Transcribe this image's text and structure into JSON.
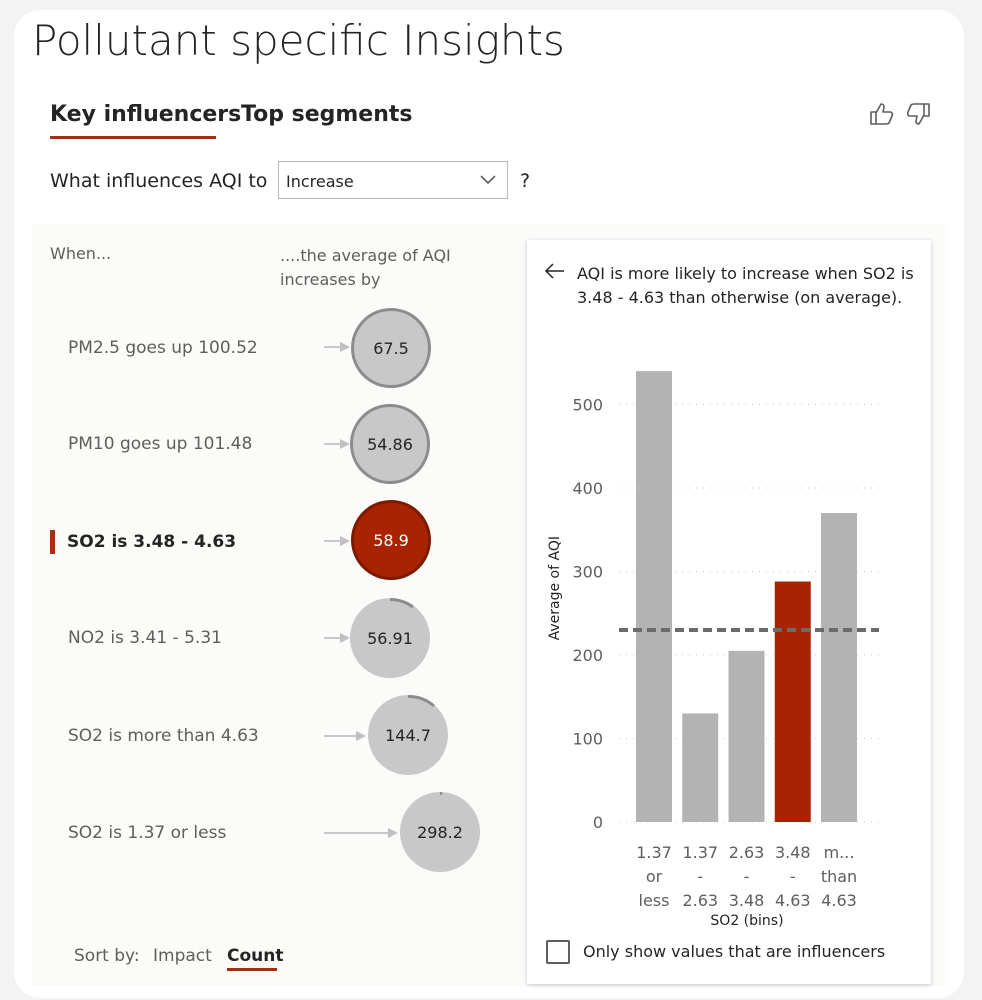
{
  "page": {
    "title": "Pollutant specific Insights"
  },
  "tabs": [
    {
      "label": "Key influencers",
      "active": true
    },
    {
      "label": "Top segments",
      "active": false
    }
  ],
  "feedback": {
    "like_icon": "thumbs-up-icon",
    "dislike_icon": "thumbs-down-icon"
  },
  "question": {
    "prefix": "What influences AQI to",
    "selected": "Increase",
    "suffix": "?"
  },
  "columns": {
    "when": "When...",
    "avg": "....the average of AQI increases by"
  },
  "influencers": [
    {
      "label": "PM2.5 goes up 100.52",
      "value": "67.5",
      "selected": false,
      "count_fraction": 1.0
    },
    {
      "label": "PM10 goes up 101.48",
      "value": "54.86",
      "selected": false,
      "count_fraction": 1.0
    },
    {
      "label": "SO2 is 3.48 - 4.63",
      "value": "58.9",
      "selected": true,
      "count_fraction": 0.1
    },
    {
      "label": "NO2 is 3.41 - 5.31",
      "value": "56.91",
      "selected": false,
      "count_fraction": 0.08
    },
    {
      "label": "SO2 is more than 4.63",
      "value": "144.7",
      "selected": false,
      "count_fraction": 0.1
    },
    {
      "label": "SO2 is 1.37 or less",
      "value": "298.2",
      "selected": false,
      "count_fraction": 0.005
    }
  ],
  "sort": {
    "label": "Sort by:",
    "impact": "Impact",
    "count": "Count",
    "active": "Count"
  },
  "detail": {
    "back_icon": "back-arrow-icon",
    "text": "AQI is more likely to increase when SO2 is 3.48 - 4.63 than otherwise (on average).",
    "checkbox_label": "Only show values that are influencers",
    "checkbox_checked": false
  },
  "chart_data": {
    "type": "bar",
    "ylabel": "Average of AQI",
    "xlabel": "SO2 (bins)",
    "ylim": [
      0,
      560
    ],
    "yticks": [
      0,
      100,
      200,
      300,
      400,
      500
    ],
    "average_line": 230,
    "categories": [
      [
        "1.37",
        "or",
        "less"
      ],
      [
        "1.37",
        "-",
        "2.63"
      ],
      [
        "2.63",
        "-",
        "3.48"
      ],
      [
        "3.48",
        "-",
        "4.63"
      ],
      [
        "m...",
        "than",
        "4.63"
      ]
    ],
    "values": [
      540,
      130,
      205,
      288,
      370
    ],
    "highlight_index": 3,
    "colors": {
      "bar": "#b3b3b3",
      "highlight": "#a82400",
      "average_line": "#6b6b6b",
      "grid": "#c8c8c8"
    }
  }
}
